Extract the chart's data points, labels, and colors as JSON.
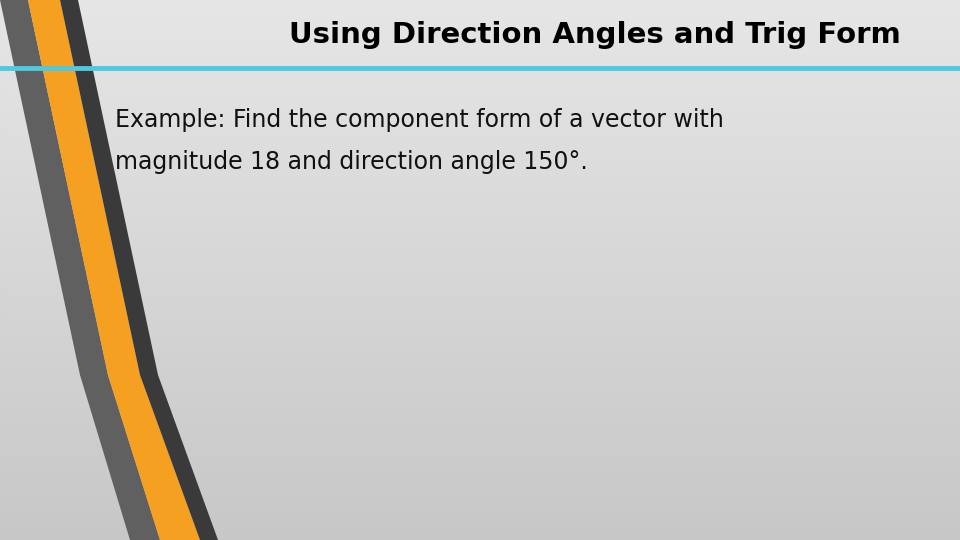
{
  "title": "Using Direction Angles and Trig Form",
  "body_line1": "Example: Find the component form of a vector with",
  "body_line2": "magnitude 18 and direction angle 150°.",
  "title_fontsize": 21,
  "body_fontsize": 17,
  "title_color": "#000000",
  "body_color": "#111111",
  "accent_line_color": "#4fc8e0",
  "stripe_orange": "#f5a020",
  "stripe_gray": "#606060",
  "stripe_dark": "#3a3a3a",
  "bg_top": "#e6e6e6",
  "bg_bottom": "#c8c8c8"
}
